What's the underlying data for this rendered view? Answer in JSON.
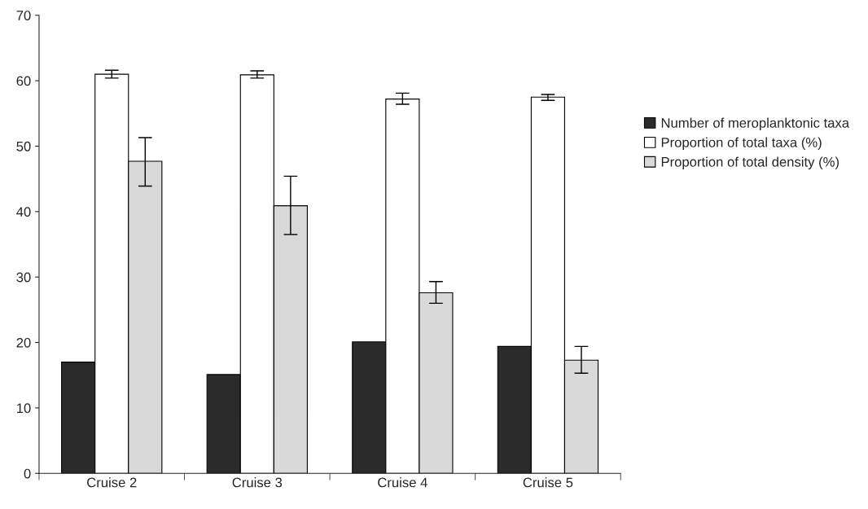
{
  "chart_data": {
    "type": "bar",
    "categories": [
      "Cruise 2",
      "Cruise 3",
      "Cruise 4",
      "Cruise 5"
    ],
    "series": [
      {
        "name": "Number of meroplanktonic taxa",
        "color": "#2b2b2b",
        "values": [
          17.0,
          15.1,
          20.1,
          19.4
        ]
      },
      {
        "name": "Proportion of total taxa (%)",
        "color": "#ffffff",
        "values": [
          61.0,
          60.9,
          57.2,
          57.5
        ],
        "errors": [
          [
            60.4,
            61.6
          ],
          [
            60.4,
            61.5
          ],
          [
            56.4,
            58.1
          ],
          [
            57.0,
            57.9
          ]
        ]
      },
      {
        "name": "Proportion of total density (%)",
        "color": "#d9d9d9",
        "values": [
          47.7,
          40.9,
          27.6,
          17.3
        ],
        "errors": [
          [
            43.9,
            51.3
          ],
          [
            36.5,
            45.4
          ],
          [
            26.0,
            29.3
          ],
          [
            15.3,
            19.4
          ]
        ]
      }
    ],
    "ylim": [
      0,
      70
    ],
    "yticks": [
      0,
      10,
      20,
      30,
      40,
      50,
      60,
      70
    ],
    "grid": false,
    "legend": "right"
  }
}
